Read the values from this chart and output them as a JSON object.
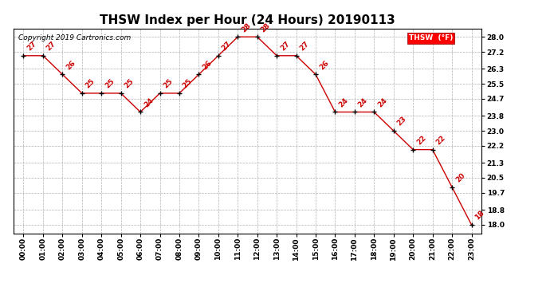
{
  "title": "THSW Index per Hour (24 Hours) 20190113",
  "copyright": "Copyright 2019 Cartronics.com",
  "legend_label": "THSW  (°F)",
  "hours": [
    0,
    1,
    2,
    3,
    4,
    5,
    6,
    7,
    8,
    9,
    10,
    11,
    12,
    13,
    14,
    15,
    16,
    17,
    18,
    19,
    20,
    21,
    22,
    23
  ],
  "values": [
    27,
    27,
    26,
    25,
    25,
    25,
    24,
    25,
    25,
    26,
    27,
    28,
    28,
    27,
    27,
    26,
    24,
    24,
    24,
    23,
    22,
    22,
    20,
    18
  ],
  "x_labels": [
    "00:00",
    "01:00",
    "02:00",
    "03:00",
    "04:00",
    "05:00",
    "06:00",
    "07:00",
    "08:00",
    "09:00",
    "10:00",
    "11:00",
    "12:00",
    "13:00",
    "14:00",
    "15:00",
    "16:00",
    "17:00",
    "18:00",
    "19:00",
    "20:00",
    "21:00",
    "22:00",
    "23:00"
  ],
  "yticks": [
    18.0,
    18.8,
    19.7,
    20.5,
    21.3,
    22.2,
    23.0,
    23.8,
    24.7,
    25.5,
    26.3,
    27.2,
    28.0
  ],
  "ylim_min": 17.55,
  "ylim_max": 28.45,
  "line_color": "#cc0000",
  "marker_color": "#000000",
  "bg_color": "#ffffff",
  "grid_color": "#b0b0b0",
  "title_fontsize": 11,
  "label_fontsize": 6.5,
  "annot_fontsize": 6.5,
  "copyright_fontsize": 6.5
}
